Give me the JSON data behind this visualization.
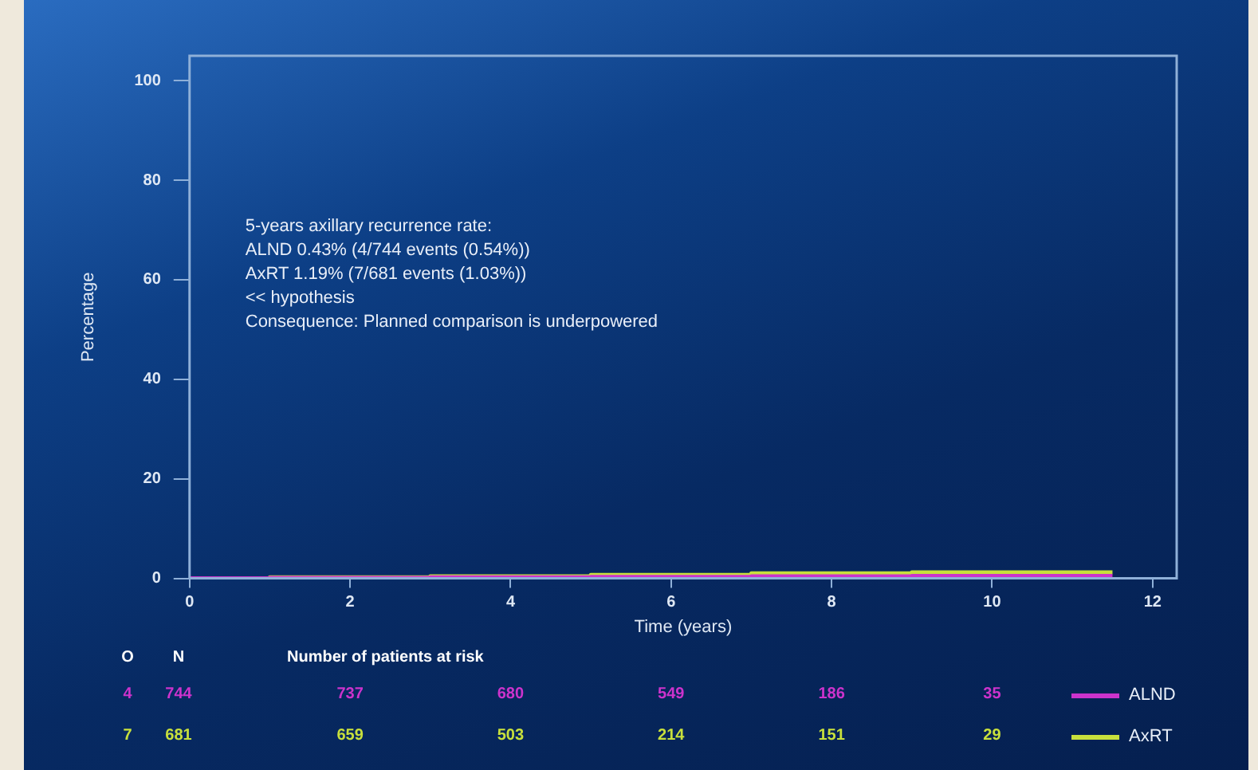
{
  "chart_data": {
    "type": "step",
    "xlabel": "Time (years)",
    "ylabel": "Percentage",
    "xlim": [
      0,
      12.3
    ],
    "xticks": [
      0,
      2,
      4,
      6,
      8,
      10,
      12
    ],
    "ylim": [
      0,
      105
    ],
    "yticks": [
      0,
      20,
      40,
      60,
      80,
      100
    ],
    "grid": false,
    "legend": "bottom right",
    "marker": "none",
    "series": [
      {
        "name": "ALND",
        "color": "#cc33cc",
        "x": [
          0,
          1,
          3,
          5,
          7,
          9,
          11.5
        ],
        "values": [
          0,
          0.1,
          0.2,
          0.3,
          0.4,
          0.5,
          0.5
        ]
      },
      {
        "name": "AxRT",
        "color": "#c8e03c",
        "x": [
          0,
          1,
          3,
          5,
          7,
          9,
          11.5
        ],
        "values": [
          0,
          0.2,
          0.4,
          0.7,
          1.0,
          1.2,
          1.2
        ]
      }
    ],
    "annotations": [
      "5-years axillary recurrence rate:",
      "ALND 0.43% (4/744 events (0.54%))",
      "AxRT 1.19% (7/681 events (1.03%))",
      "<< hypothesis",
      "Consequence: Planned comparison is underpowered",
      "O",
      "N",
      "Number of patients at risk",
      "4",
      "744",
      "737",
      "680",
      "549",
      "186",
      "35",
      "7",
      "681",
      "659",
      "503",
      "214",
      "151",
      "29"
    ]
  }
}
